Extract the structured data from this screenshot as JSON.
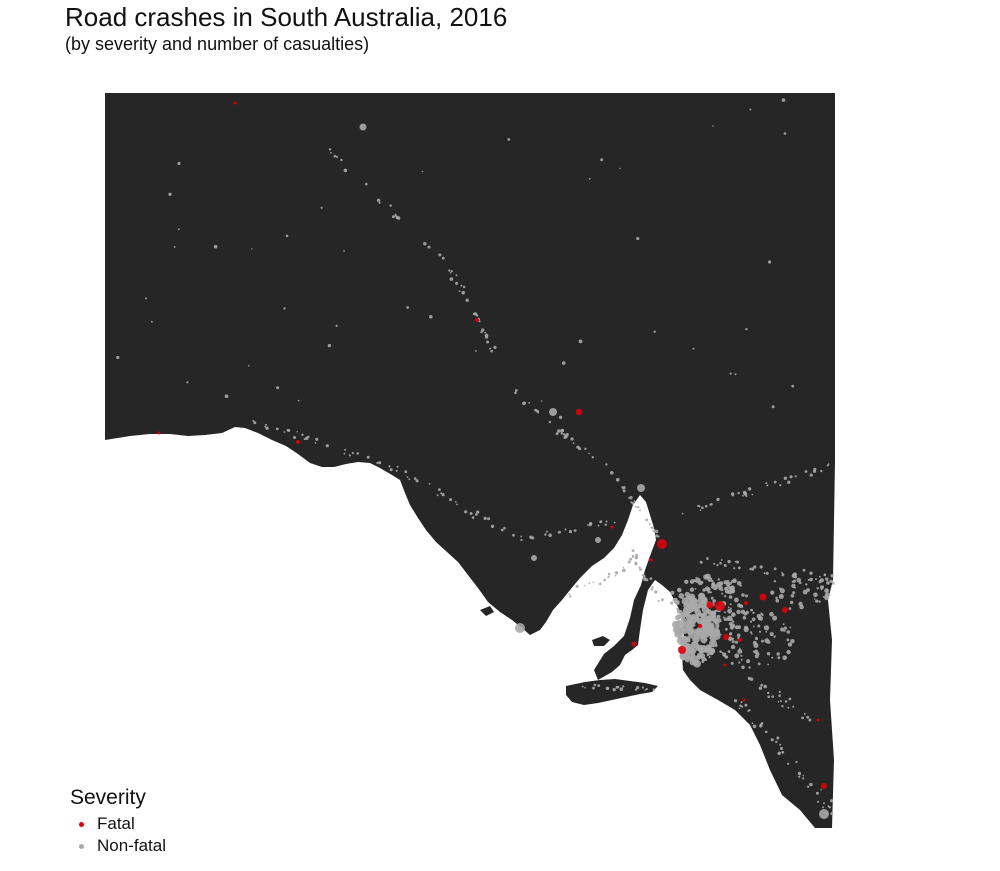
{
  "title": "Road crashes in South Australia, 2016",
  "subtitle": "(by severity and number of casualties)",
  "map": {
    "region": "South Australia",
    "land_color": "#262626",
    "water_color": "#ffffff"
  },
  "legend": {
    "title": "Severity",
    "items": [
      {
        "label": "Fatal",
        "color": "#e0000a"
      },
      {
        "label": "Non-fatal",
        "color": "#a8a8a8"
      }
    ]
  }
}
